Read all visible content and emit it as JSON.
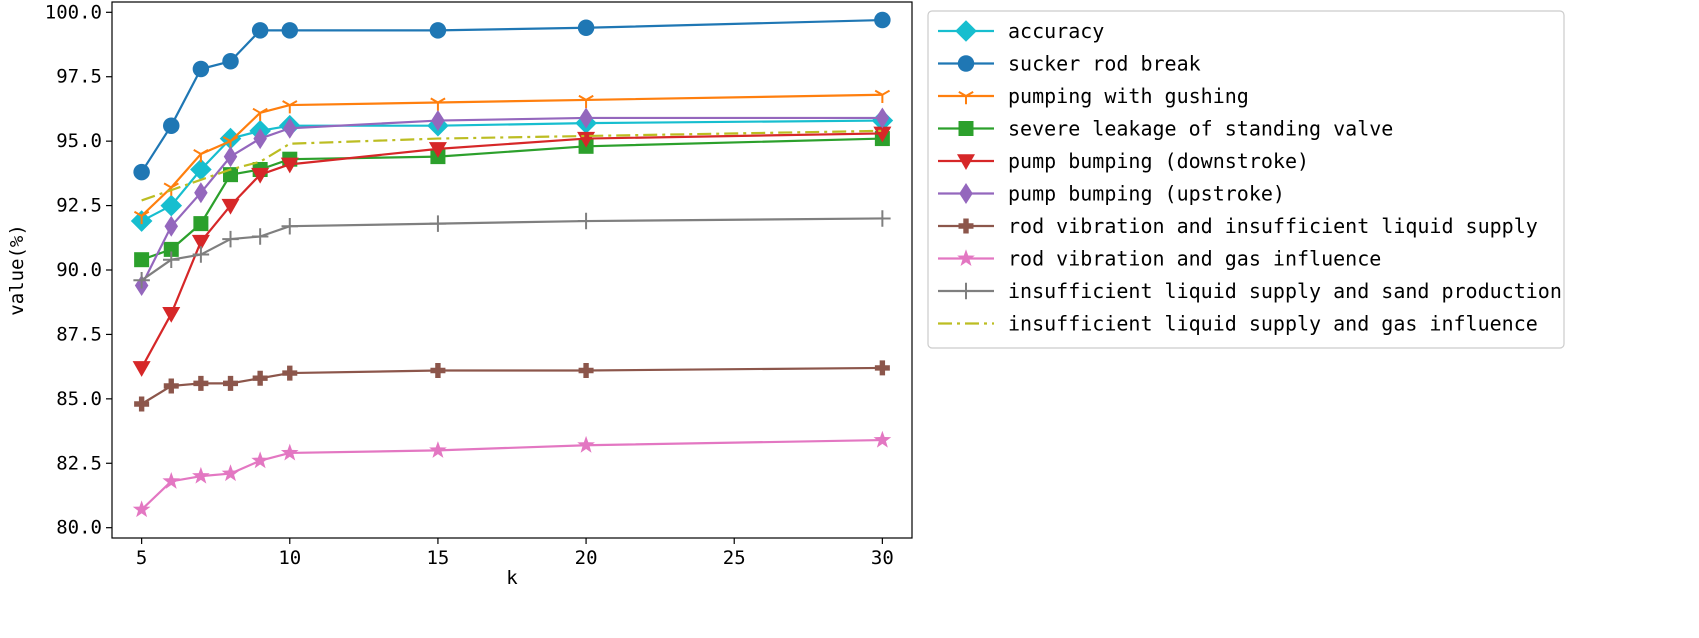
{
  "chart_data": {
    "type": "line",
    "xlabel": "k",
    "ylabel": "value(%)",
    "xlim": [
      4.0,
      31.0
    ],
    "ylim": [
      79.6,
      100.4
    ],
    "xticks": [
      5,
      10,
      15,
      20,
      25,
      30
    ],
    "xtick_labels": [
      "5",
      "10",
      "15",
      "20",
      "25",
      "30"
    ],
    "yticks": [
      80.0,
      82.5,
      85.0,
      87.5,
      90.0,
      92.5,
      95.0,
      97.5,
      100.0
    ],
    "ytick_labels": [
      "80.0",
      "82.5",
      "85.0",
      "87.5",
      "90.0",
      "92.5",
      "95.0",
      "97.5",
      "100.0"
    ],
    "grid": false,
    "legend_position": "outside-right-top",
    "x": [
      5,
      6,
      7,
      8,
      9,
      10,
      15,
      20,
      30
    ],
    "series": [
      {
        "name": "accuracy",
        "color": "#17becf",
        "marker": "D",
        "dash": "",
        "values": [
          91.9,
          92.5,
          93.9,
          95.1,
          95.4,
          95.6,
          95.6,
          95.7,
          95.8
        ]
      },
      {
        "name": "sucker rod break",
        "color": "#1f77b4",
        "marker": "o",
        "dash": "",
        "values": [
          93.8,
          95.6,
          97.8,
          98.1,
          99.3,
          99.3,
          99.3,
          99.4,
          99.7
        ]
      },
      {
        "name": "pumping with gushing",
        "color": "#ff7f0e",
        "marker": "1",
        "dash": "",
        "values": [
          92.1,
          93.2,
          94.5,
          95.0,
          96.1,
          96.4,
          96.5,
          96.6,
          96.8
        ]
      },
      {
        "name": "severe leakage of standing valve",
        "color": "#2ca02c",
        "marker": "s",
        "dash": "",
        "values": [
          90.4,
          90.8,
          91.8,
          93.7,
          93.9,
          94.3,
          94.4,
          94.8,
          95.1
        ]
      },
      {
        "name": "pump bumping (downstroke)",
        "color": "#d62728",
        "marker": "v",
        "dash": "",
        "values": [
          86.2,
          88.3,
          91.1,
          92.5,
          93.7,
          94.1,
          94.7,
          95.1,
          95.3
        ]
      },
      {
        "name": "pump bumping (upstroke)",
        "color": "#9467bd",
        "marker": "d",
        "dash": "",
        "values": [
          89.4,
          91.7,
          93.0,
          94.4,
          95.1,
          95.5,
          95.8,
          95.9,
          95.9
        ]
      },
      {
        "name": "rod vibration and insufficient liquid supply",
        "color": "#8c564b",
        "marker": "P",
        "dash": "",
        "values": [
          84.8,
          85.5,
          85.6,
          85.6,
          85.8,
          86.0,
          86.1,
          86.1,
          86.2
        ]
      },
      {
        "name": "rod vibration and gas influence",
        "color": "#e377c2",
        "marker": "*",
        "dash": "",
        "values": [
          80.7,
          81.8,
          82.0,
          82.1,
          82.6,
          82.9,
          83.0,
          83.2,
          83.4
        ]
      },
      {
        "name": "insufficient liquid supply and sand production",
        "color": "#7f7f7f",
        "marker": "+",
        "dash": "",
        "values": [
          89.6,
          90.4,
          90.6,
          91.2,
          91.3,
          91.7,
          91.8,
          91.9,
          92.0
        ]
      },
      {
        "name": "insufficient liquid supply and gas influence",
        "color": "#bcbd22",
        "marker": "",
        "dash": "14 5 3 5",
        "values": [
          92.7,
          93.1,
          93.5,
          93.9,
          94.2,
          94.9,
          95.1,
          95.2,
          95.4
        ]
      }
    ]
  }
}
